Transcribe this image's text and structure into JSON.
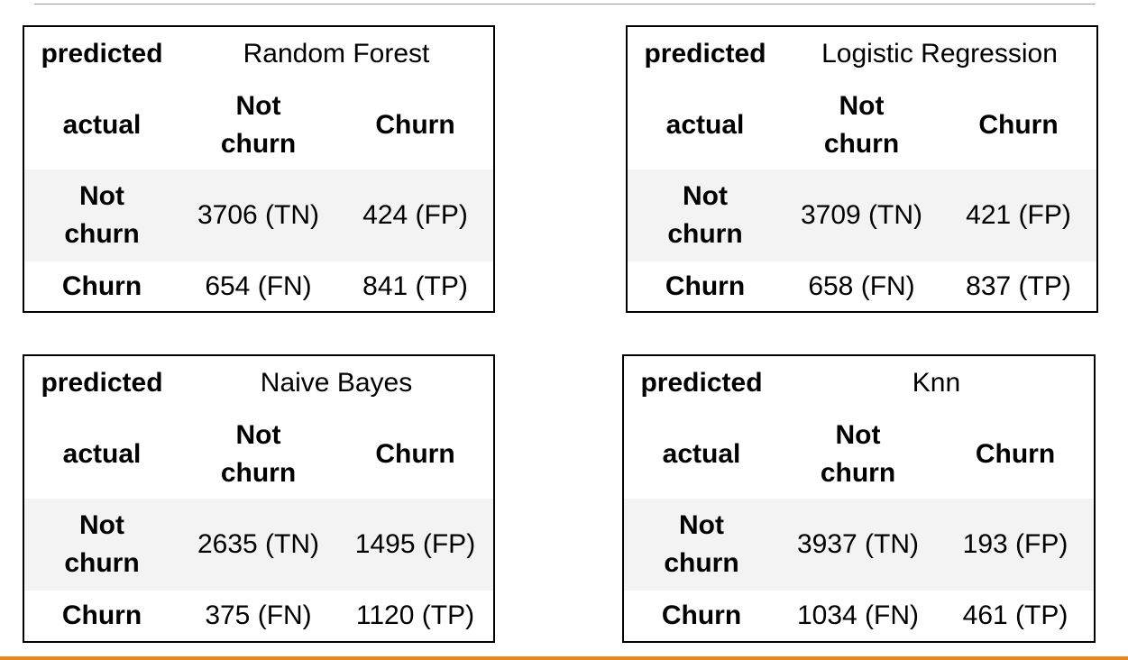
{
  "labels": {
    "predicted": "predicted",
    "actual": "actual",
    "not_churn_line1": "Not",
    "not_churn_line2": "churn",
    "churn": "Churn"
  },
  "matrices": [
    {
      "model": "Random Forest",
      "tn": "3706 (TN)",
      "fp": "424 (FP)",
      "fn": "654 (FN)",
      "tp": "841 (TP)"
    },
    {
      "model": "Logistic Regression",
      "tn": "3709 (TN)",
      "fp": "421 (FP)",
      "fn": "658 (FN)",
      "tp": "837 (TP)"
    },
    {
      "model": "Naive Bayes",
      "tn": "2635 (TN)",
      "fp": "1495 (FP)",
      "fn": "375 (FN)",
      "tp": "1120 (TP)"
    },
    {
      "model": "Knn",
      "tn": "3937 (TN)",
      "fp": "193 (FP)",
      "fn": "1034 (FN)",
      "tp": "461 (TP)"
    }
  ],
  "colors": {
    "accent_bar": "#e3891f",
    "row_shade": "#f3f3f3",
    "border": "#000000"
  }
}
